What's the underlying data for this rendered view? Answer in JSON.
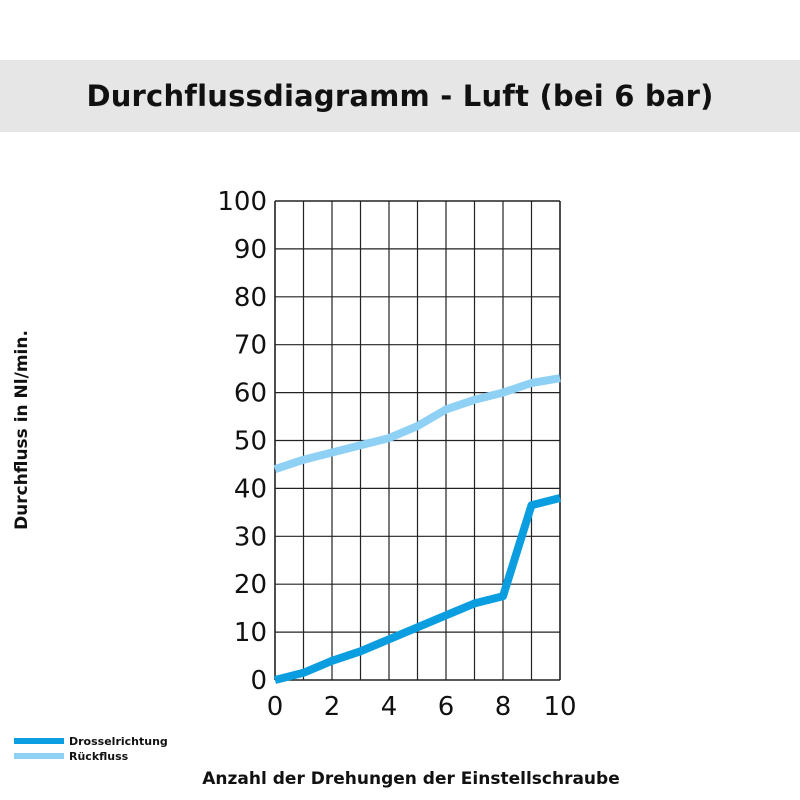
{
  "colors": {
    "background": "#ffffff",
    "title_band": "#e6e6e6",
    "grid": "#222222",
    "drossel": "#0a9ee0",
    "rueckfluss": "#8fd0f5"
  },
  "chart_data": {
    "type": "line",
    "title": "Durchflussdiagramm - Luft (bei 6 bar)",
    "xlabel": "Anzahl der Drehungen der Einstellschraube",
    "ylabel": "Durchfluss in Nl/min.",
    "xlim": [
      0,
      10
    ],
    "ylim": [
      0,
      100
    ],
    "x_ticks": [
      "0",
      "2",
      "4",
      "6",
      "8",
      "10"
    ],
    "y_ticks": [
      "0",
      "10",
      "20",
      "30",
      "40",
      "50",
      "60",
      "70",
      "80",
      "90",
      "100"
    ],
    "grid": true,
    "x": [
      0,
      1,
      2,
      3,
      4,
      5,
      6,
      7,
      8,
      9,
      10
    ],
    "series": [
      {
        "name": "Drosselrichtung",
        "color": "#0a9ee0",
        "values": [
          0,
          1.5,
          4,
          6,
          8.5,
          11,
          13.5,
          16,
          17.5,
          36.5,
          38
        ]
      },
      {
        "name": "Rückfluss",
        "color": "#8fd0f5",
        "values": [
          44,
          46,
          47.5,
          49,
          50.5,
          53,
          56.5,
          58.5,
          60,
          62,
          63
        ]
      }
    ],
    "legend_position": "bottom-left"
  }
}
